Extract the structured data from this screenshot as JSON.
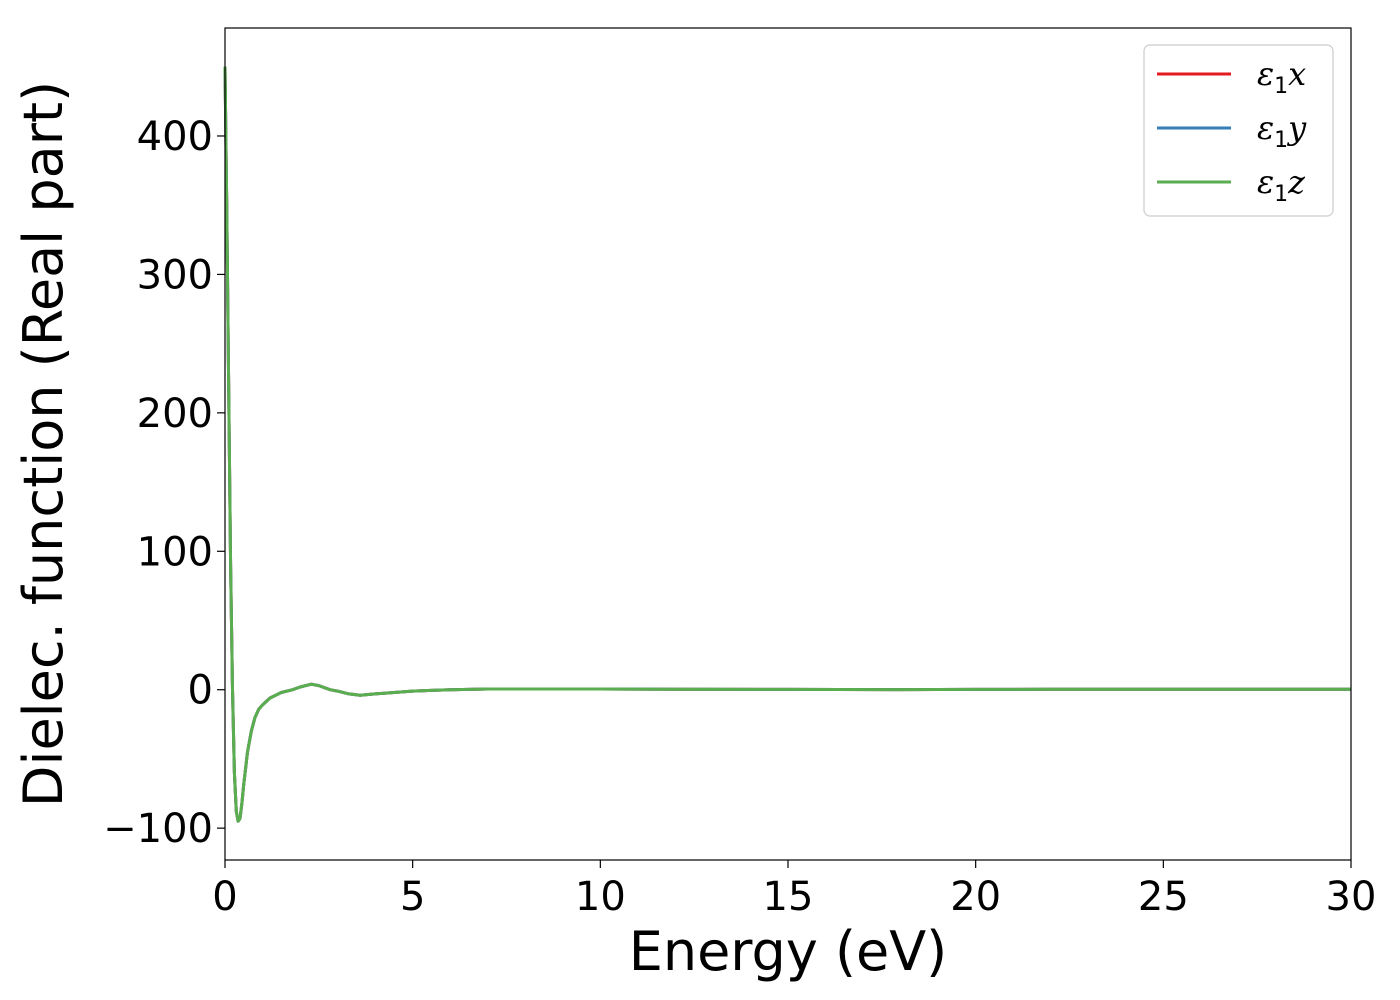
{
  "chart_data": {
    "type": "line",
    "title": "",
    "xlabel": "Energy (eV)",
    "ylabel": "Dielec. function (Real part)",
    "xlim": [
      0,
      30
    ],
    "ylim": [
      -123,
      478
    ],
    "xticks": [
      0,
      5,
      10,
      15,
      20,
      25,
      30
    ],
    "yticks": [
      -100,
      0,
      100,
      200,
      300,
      400
    ],
    "xtick_labels": [
      "0",
      "5",
      "10",
      "15",
      "20",
      "25",
      "30"
    ],
    "ytick_labels": [
      "−100",
      "0",
      "100",
      "200",
      "300",
      "400"
    ],
    "grid": false,
    "legend_position": "top-right",
    "series": [
      {
        "name": "ε1x",
        "legend": {
          "symbol": "ε",
          "subscript": "1",
          "axis": "x"
        },
        "color": "#e41a1c",
        "x": [
          0.0,
          0.05,
          0.1,
          0.15,
          0.2,
          0.25,
          0.3,
          0.35,
          0.4,
          0.45,
          0.5,
          0.6,
          0.7,
          0.8,
          0.9,
          1.0,
          1.2,
          1.5,
          1.8,
          2.0,
          2.3,
          2.5,
          2.8,
          3.0,
          3.3,
          3.6,
          4.0,
          4.5,
          5.0,
          5.5,
          6.0,
          7.0,
          8.0,
          10.0,
          12.0,
          15.0,
          18.0,
          20.0,
          22.0,
          25.0,
          28.0,
          30.0
        ],
        "y": [
          450,
          340,
          210,
          90,
          0,
          -60,
          -88,
          -95,
          -93,
          -82,
          -68,
          -45,
          -30,
          -20,
          -14,
          -11,
          -6,
          -2,
          0,
          2,
          4,
          3,
          0,
          -1,
          -3,
          -4,
          -3,
          -2,
          -1,
          -0.5,
          0,
          0.5,
          0.5,
          0.5,
          0.3,
          0.2,
          0.1,
          0.2,
          0.3,
          0.3,
          0.3,
          0.3
        ]
      },
      {
        "name": "ε1y",
        "legend": {
          "symbol": "ε",
          "subscript": "1",
          "axis": "y"
        },
        "color": "#377eb8",
        "x": [
          0.0,
          0.05,
          0.1,
          0.15,
          0.2,
          0.25,
          0.3,
          0.35,
          0.4,
          0.45,
          0.5,
          0.6,
          0.7,
          0.8,
          0.9,
          1.0,
          1.2,
          1.5,
          1.8,
          2.0,
          2.3,
          2.5,
          2.8,
          3.0,
          3.3,
          3.6,
          4.0,
          4.5,
          5.0,
          5.5,
          6.0,
          7.0,
          8.0,
          10.0,
          12.0,
          15.0,
          18.0,
          20.0,
          22.0,
          25.0,
          28.0,
          30.0
        ],
        "y": [
          450,
          340,
          210,
          90,
          0,
          -60,
          -88,
          -95,
          -93,
          -82,
          -68,
          -45,
          -30,
          -20,
          -14,
          -11,
          -6,
          -2,
          0,
          2,
          4,
          3,
          0,
          -1,
          -3,
          -4,
          -3,
          -2,
          -1,
          -0.5,
          0,
          0.5,
          0.5,
          0.5,
          0.3,
          0.2,
          0.1,
          0.2,
          0.3,
          0.3,
          0.3,
          0.3
        ]
      },
      {
        "name": "ε1z",
        "legend": {
          "symbol": "ε",
          "subscript": "1",
          "axis": "z"
        },
        "color": "#5aae4f",
        "x": [
          0.0,
          0.05,
          0.1,
          0.15,
          0.2,
          0.25,
          0.3,
          0.35,
          0.4,
          0.45,
          0.5,
          0.6,
          0.7,
          0.8,
          0.9,
          1.0,
          1.2,
          1.5,
          1.8,
          2.0,
          2.3,
          2.5,
          2.8,
          3.0,
          3.3,
          3.6,
          4.0,
          4.5,
          5.0,
          5.5,
          6.0,
          7.0,
          8.0,
          10.0,
          12.0,
          15.0,
          18.0,
          20.0,
          22.0,
          25.0,
          28.0,
          30.0
        ],
        "y": [
          450,
          340,
          210,
          90,
          0,
          -60,
          -88,
          -95,
          -93,
          -82,
          -68,
          -45,
          -30,
          -20,
          -14,
          -11,
          -6,
          -2,
          0,
          2,
          4,
          3,
          0,
          -1,
          -3,
          -4,
          -3,
          -2,
          -1,
          -0.5,
          0,
          0.5,
          0.5,
          0.5,
          0.3,
          0.2,
          0.1,
          0.2,
          0.3,
          0.3,
          0.3,
          0.3
        ]
      }
    ]
  }
}
